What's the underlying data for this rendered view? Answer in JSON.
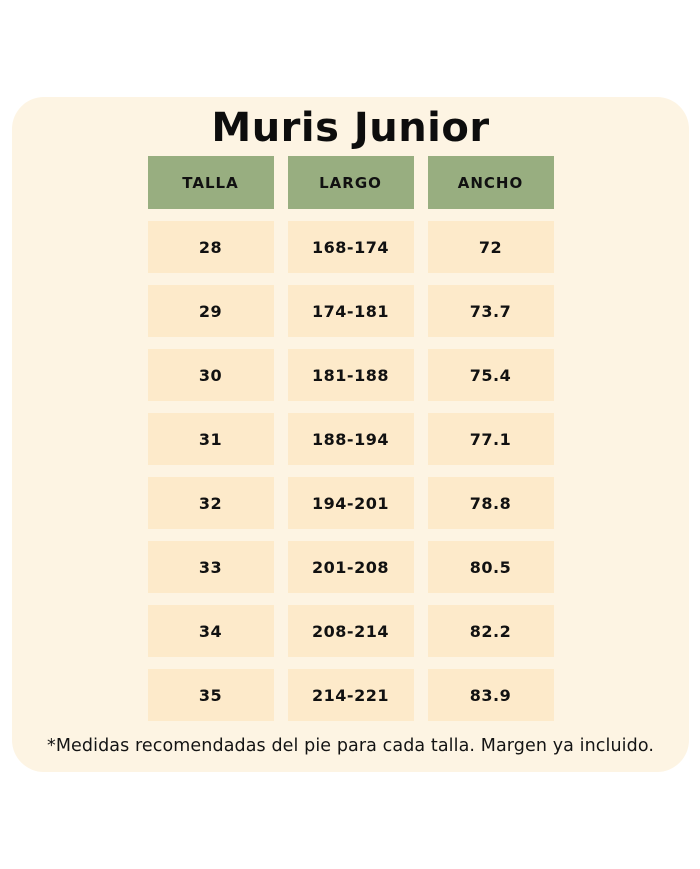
{
  "chart_data": {
    "type": "table",
    "title": "Muris Junior",
    "columns": [
      "TALLA",
      "LARGO",
      "ANCHO"
    ],
    "rows": [
      [
        "28",
        "168-174",
        "72"
      ],
      [
        "29",
        "174-181",
        "73.7"
      ],
      [
        "30",
        "181-188",
        "75.4"
      ],
      [
        "31",
        "188-194",
        "77.1"
      ],
      [
        "32",
        "194-201",
        "78.8"
      ],
      [
        "33",
        "201-208",
        "80.5"
      ],
      [
        "34",
        "208-214",
        "82.2"
      ],
      [
        "35",
        "214-221",
        "83.9"
      ]
    ],
    "footnote": "*Medidas recomendadas del pie para cada talla. Margen ya incluido."
  },
  "colors": {
    "page_background": "#ffffff",
    "card_background": "#FDF4E3",
    "header_cell": "#98AE80",
    "data_cell": "#FDEACA",
    "text": "#111111"
  }
}
